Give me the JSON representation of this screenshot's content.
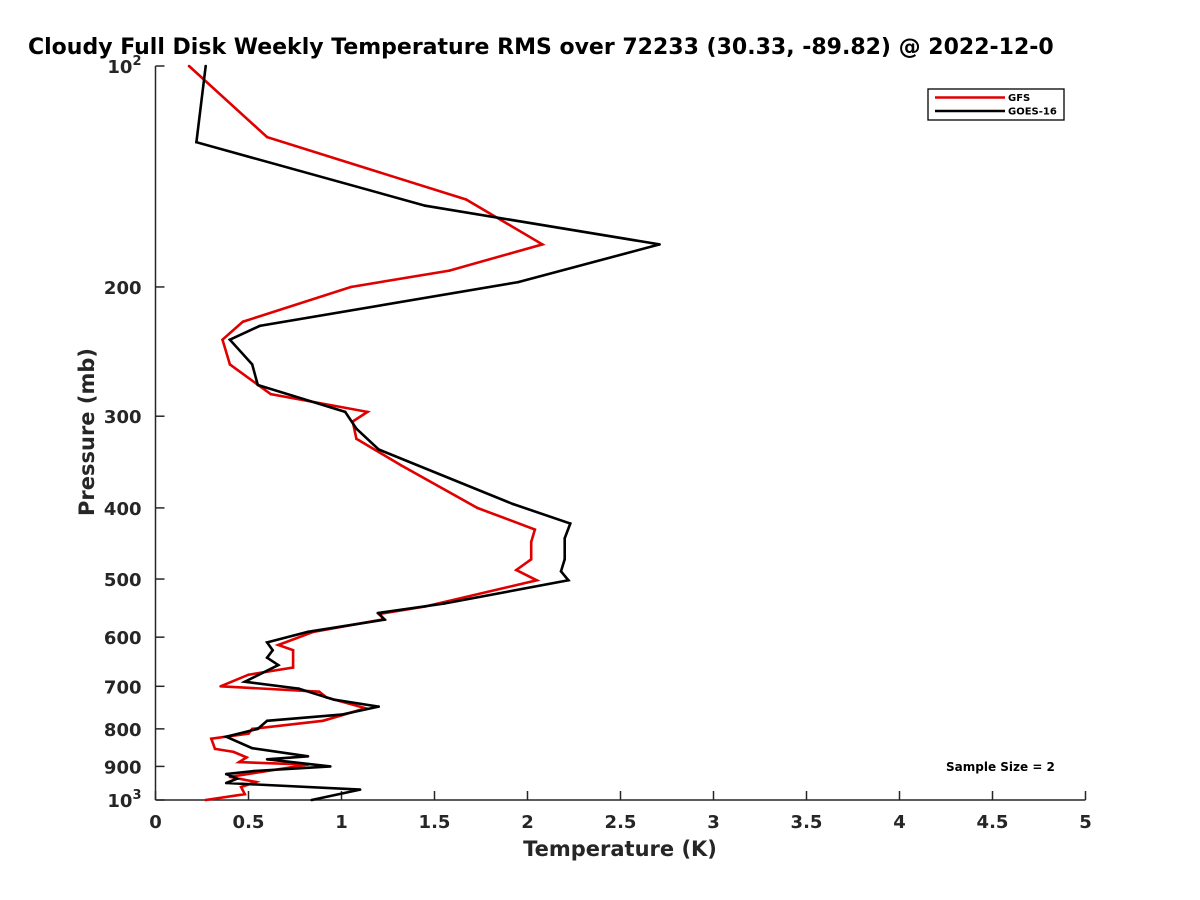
{
  "chart_data": {
    "type": "line",
    "title": "Cloudy Full Disk Weekly Temperature RMS over 72233 (30.33, -89.82) @ 2022-12-0",
    "xlabel": "Temperature (K)",
    "ylabel": "Pressure (mb)",
    "xlim": [
      0,
      5
    ],
    "ylim": [
      100,
      1000
    ],
    "yscale": "log",
    "y_reversed": true,
    "grid": false,
    "legend_position": "top-right",
    "x_ticks": [
      "0",
      "0.5",
      "1",
      "1.5",
      "2",
      "2.5",
      "3",
      "3.5",
      "4",
      "4.5",
      "5"
    ],
    "y_ticks": [
      {
        "value": 100,
        "base": "10",
        "exp": "2"
      },
      {
        "value": 200,
        "label": "200"
      },
      {
        "value": 300,
        "label": "300"
      },
      {
        "value": 400,
        "label": "400"
      },
      {
        "value": 500,
        "label": "500"
      },
      {
        "value": 600,
        "label": "600"
      },
      {
        "value": 700,
        "label": "700"
      },
      {
        "value": 800,
        "label": "800"
      },
      {
        "value": 900,
        "label": "900"
      },
      {
        "value": 1000,
        "base": "10",
        "exp": "3"
      }
    ],
    "series": [
      {
        "name": "GFS",
        "color": "#e00000",
        "points": [
          [
            0.18,
            100
          ],
          [
            0.6,
            125
          ],
          [
            1.67,
            152
          ],
          [
            2.08,
            175
          ],
          [
            1.58,
            190
          ],
          [
            1.05,
            200
          ],
          [
            0.47,
            223
          ],
          [
            0.36,
            236
          ],
          [
            0.4,
            255
          ],
          [
            0.62,
            280
          ],
          [
            1.14,
            296
          ],
          [
            1.06,
            305
          ],
          [
            1.08,
            322
          ],
          [
            1.32,
            350
          ],
          [
            1.73,
            400
          ],
          [
            2.04,
            428
          ],
          [
            2.02,
            445
          ],
          [
            2.02,
            470
          ],
          [
            1.94,
            486
          ],
          [
            2.05,
            502
          ],
          [
            1.45,
            545
          ],
          [
            1.2,
            558
          ],
          [
            1.23,
            567
          ],
          [
            0.85,
            590
          ],
          [
            0.66,
            615
          ],
          [
            0.74,
            625
          ],
          [
            0.74,
            660
          ],
          [
            0.5,
            675
          ],
          [
            0.35,
            700
          ],
          [
            0.88,
            712
          ],
          [
            0.92,
            725
          ],
          [
            1.13,
            750
          ],
          [
            0.9,
            780
          ],
          [
            0.52,
            800
          ],
          [
            0.5,
            812
          ],
          [
            0.3,
            825
          ],
          [
            0.32,
            852
          ],
          [
            0.42,
            860
          ],
          [
            0.49,
            875
          ],
          [
            0.45,
            888
          ],
          [
            0.82,
            895
          ],
          [
            0.4,
            930
          ],
          [
            0.54,
            945
          ],
          [
            0.46,
            960
          ],
          [
            0.48,
            982
          ],
          [
            0.27,
            1000
          ]
        ]
      },
      {
        "name": "GOES-16",
        "color": "#000000",
        "points": [
          [
            0.27,
            100
          ],
          [
            0.22,
            127
          ],
          [
            1.45,
            155
          ],
          [
            2.71,
            175
          ],
          [
            1.95,
            197
          ],
          [
            0.56,
            226
          ],
          [
            0.4,
            236
          ],
          [
            0.52,
            255
          ],
          [
            0.55,
            272
          ],
          [
            1.02,
            296
          ],
          [
            1.08,
            312
          ],
          [
            1.2,
            333
          ],
          [
            1.92,
            395
          ],
          [
            2.23,
            420
          ],
          [
            2.2,
            440
          ],
          [
            2.2,
            470
          ],
          [
            2.18,
            488
          ],
          [
            2.22,
            502
          ],
          [
            1.55,
            540
          ],
          [
            1.2,
            556
          ],
          [
            1.23,
            568
          ],
          [
            0.82,
            590
          ],
          [
            0.6,
            610
          ],
          [
            0.63,
            625
          ],
          [
            0.6,
            640
          ],
          [
            0.66,
            655
          ],
          [
            0.48,
            690
          ],
          [
            0.77,
            705
          ],
          [
            0.96,
            730
          ],
          [
            1.2,
            746
          ],
          [
            1.0,
            765
          ],
          [
            0.6,
            780
          ],
          [
            0.55,
            800
          ],
          [
            0.38,
            820
          ],
          [
            0.52,
            850
          ],
          [
            0.82,
            872
          ],
          [
            0.6,
            880
          ],
          [
            0.94,
            900
          ],
          [
            0.53,
            913
          ],
          [
            0.38,
            922
          ],
          [
            0.44,
            935
          ],
          [
            0.38,
            948
          ],
          [
            1.1,
            968
          ],
          [
            0.84,
            1000
          ]
        ]
      }
    ],
    "annotations": [
      "Sample Size = 2"
    ]
  }
}
